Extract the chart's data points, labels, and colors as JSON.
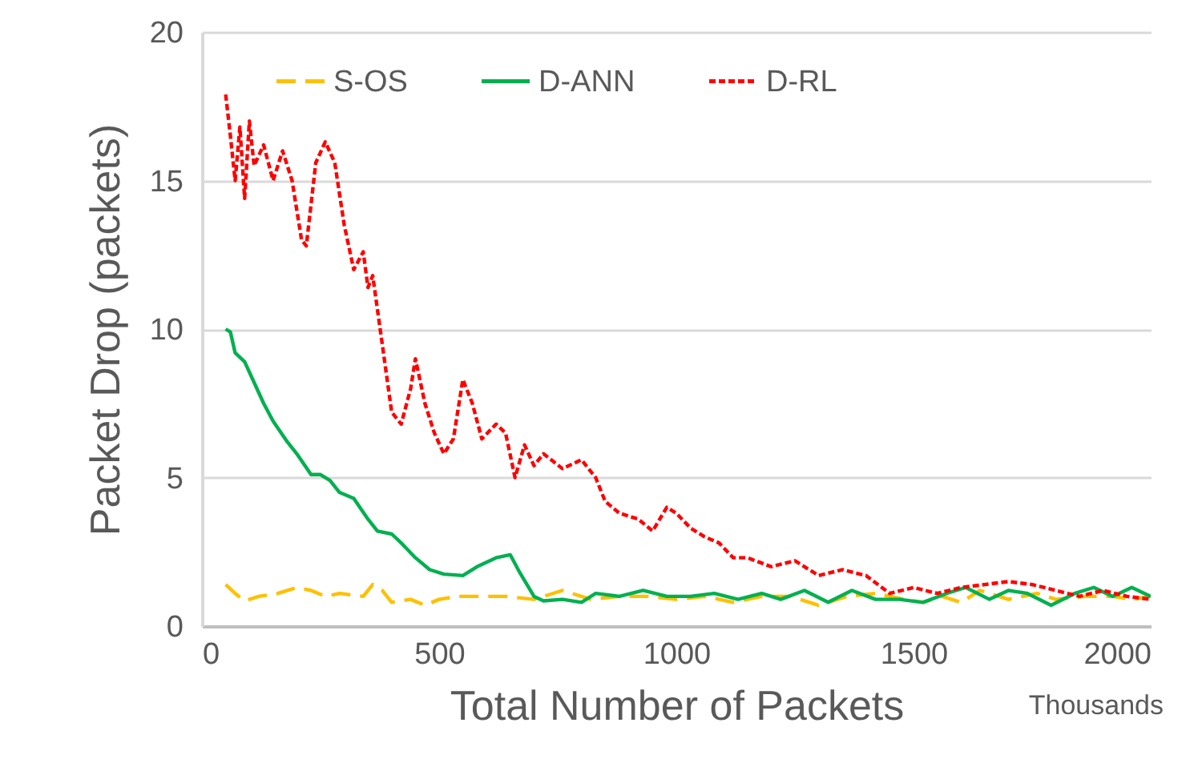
{
  "chart_data": {
    "type": "line",
    "xlabel": "Total Number of Packets",
    "ylabel": "Packet Drop  (packets)",
    "annotations": [
      "Thousands"
    ],
    "xlim": [
      0,
      2000
    ],
    "xticks": [
      0,
      500,
      1000,
      1500,
      2000
    ],
    "ylim": [
      0,
      20
    ],
    "yticks": [
      0,
      5,
      10,
      15,
      20
    ],
    "grid": "y",
    "legend": "top",
    "series": [
      {
        "name": "S-OS",
        "color": "#ffc000",
        "line_style": "dashed",
        "x": [
          50,
          70,
          90,
          120,
          160,
          200,
          230,
          260,
          290,
          340,
          360,
          380,
          400,
          440,
          470,
          500,
          540,
          580,
          640,
          700,
          760,
          820,
          880,
          940,
          1000,
          1060,
          1120,
          1180,
          1240,
          1300,
          1360,
          1420,
          1480,
          1520,
          1560,
          1600,
          1640,
          1700,
          1760,
          1800,
          1860,
          1920,
          1960,
          2000
        ],
        "values": [
          1.4,
          1.1,
          0.85,
          1.0,
          1.1,
          1.3,
          1.2,
          1.0,
          1.1,
          1.0,
          1.4,
          1.2,
          0.8,
          0.9,
          0.7,
          0.9,
          1.0,
          1.0,
          1.0,
          0.9,
          1.2,
          0.9,
          1.0,
          1.0,
          0.9,
          1.0,
          0.8,
          1.0,
          1.0,
          0.7,
          1.0,
          1.1,
          0.9,
          0.8,
          1.0,
          0.8,
          1.2,
          0.9,
          1.1,
          0.9,
          1.0,
          1.0,
          0.9,
          1.0
        ]
      },
      {
        "name": "D-ANN",
        "color": "#00b050",
        "line_style": "solid",
        "x": [
          50,
          60,
          70,
          90,
          110,
          130,
          150,
          180,
          200,
          230,
          250,
          270,
          290,
          320,
          350,
          370,
          400,
          420,
          450,
          480,
          510,
          550,
          580,
          620,
          650,
          670,
          700,
          720,
          760,
          800,
          830,
          880,
          930,
          980,
          1030,
          1080,
          1130,
          1180,
          1220,
          1270,
          1320,
          1370,
          1420,
          1470,
          1520,
          1570,
          1610,
          1660,
          1700,
          1740,
          1790,
          1840,
          1880,
          1920,
          1960,
          2000
        ],
        "values": [
          10.0,
          9.9,
          9.2,
          8.9,
          8.2,
          7.5,
          6.9,
          6.2,
          5.8,
          5.1,
          5.1,
          4.9,
          4.5,
          4.3,
          3.6,
          3.2,
          3.1,
          2.8,
          2.3,
          1.9,
          1.75,
          1.7,
          2.0,
          2.3,
          2.4,
          1.8,
          1.0,
          0.85,
          0.9,
          0.8,
          1.1,
          1.0,
          1.2,
          1.0,
          1.0,
          1.1,
          0.9,
          1.1,
          0.9,
          1.2,
          0.8,
          1.2,
          0.9,
          0.9,
          0.8,
          1.1,
          1.3,
          0.9,
          1.2,
          1.1,
          0.7,
          1.1,
          1.3,
          1.0,
          1.3,
          1.0
        ]
      },
      {
        "name": "D-RL",
        "color": "#ff0000",
        "line_style": "dotted",
        "x": [
          50,
          60,
          70,
          80,
          90,
          100,
          110,
          130,
          150,
          170,
          190,
          210,
          220,
          240,
          260,
          280,
          300,
          320,
          340,
          350,
          360,
          380,
          400,
          420,
          440,
          450,
          470,
          490,
          510,
          530,
          550,
          570,
          590,
          620,
          640,
          660,
          680,
          700,
          720,
          760,
          800,
          830,
          850,
          880,
          920,
          950,
          980,
          1000,
          1030,
          1060,
          1090,
          1120,
          1150,
          1200,
          1250,
          1300,
          1350,
          1400,
          1450,
          1500,
          1550,
          1600,
          1650,
          1700,
          1750,
          1800,
          1850,
          1900,
          1950,
          2000
        ],
        "values": [
          17.9,
          16.5,
          15.0,
          16.8,
          14.4,
          17.0,
          15.5,
          16.2,
          15.0,
          16.0,
          15.0,
          13.0,
          12.8,
          15.6,
          16.3,
          15.6,
          13.5,
          12.0,
          12.6,
          11.4,
          11.8,
          9.5,
          7.2,
          6.8,
          8.0,
          9.0,
          7.5,
          6.5,
          5.8,
          6.3,
          8.3,
          7.5,
          6.3,
          6.8,
          6.5,
          5.0,
          6.1,
          5.4,
          5.8,
          5.3,
          5.6,
          5.0,
          4.2,
          3.8,
          3.6,
          3.2,
          4.0,
          3.8,
          3.3,
          3.0,
          2.8,
          2.3,
          2.3,
          2.0,
          2.2,
          1.7,
          1.9,
          1.7,
          1.1,
          1.3,
          1.1,
          1.3,
          1.4,
          1.5,
          1.4,
          1.2,
          1.0,
          1.2,
          1.0,
          0.9
        ]
      }
    ]
  }
}
